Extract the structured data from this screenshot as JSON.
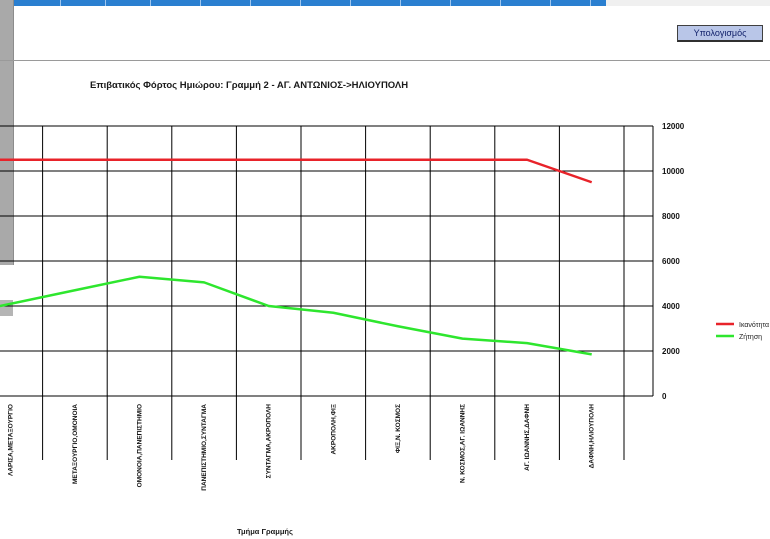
{
  "toolbar": {
    "calculate_label": "Υπολογισμός"
  },
  "chart_data": {
    "type": "line",
    "title": "Επιβατικός Φόρτος Ημιώρου: Γραμμή 2 - ΑΓ. ΑΝΤΩΝΙΟΣ->ΗΛΙΟΥΠΟΛΗ",
    "xlabel": "Τμήμα Γραμμής",
    "ylabel": "",
    "ylim": [
      0,
      12000
    ],
    "yticks": [
      0,
      2000,
      4000,
      6000,
      8000,
      10000,
      12000
    ],
    "y_axis_side": "right",
    "grid": true,
    "legend_position": "right",
    "categories": [
      "ΛΑΡΙΣΑ,ΜΕΤΑΞΟΥΡΓΙΟ",
      "ΜΕΤΑΞΟΥΡΓΙΟ,ΟΜΟΝΟΙΑ",
      "ΟΜΟΝΟΙΑ,ΠΑΝΕΠΙΣΤΗΜΙΟ",
      "ΠΑΝΕΠΙΣΤΗΜΙΟ,ΣΥΝΤΑΓΜΑ",
      "ΣΥΝΤΑΓΜΑ,ΑΚΡΟΠΟΛΗ",
      "ΑΚΡΟΠΟΛΗ,ΦΙΞ",
      "ΦΙΞ,Ν. ΚΟΣΜΟΣ",
      "Ν. ΚΟΣΜΟΣ,ΑΓ. ΙΩΑΝΝΗΣ",
      "ΑΓ. ΙΩΑΝΝΗΣ,ΔΑΦΝΗ",
      "ΔΑΦΝΗ,ΗΛΙΟΥΠΟΛΗ"
    ],
    "series": [
      {
        "name": "Ικανότητα",
        "color": "#e8232a",
        "values": [
          10500,
          10500,
          10500,
          10500,
          10500,
          10500,
          10500,
          10500,
          10500,
          9500
        ]
      },
      {
        "name": "Ζήτηση",
        "color": "#2ee62e",
        "values": [
          4200,
          4700,
          5300,
          5050,
          4000,
          3700,
          3100,
          2550,
          2350,
          1850
        ]
      }
    ]
  }
}
